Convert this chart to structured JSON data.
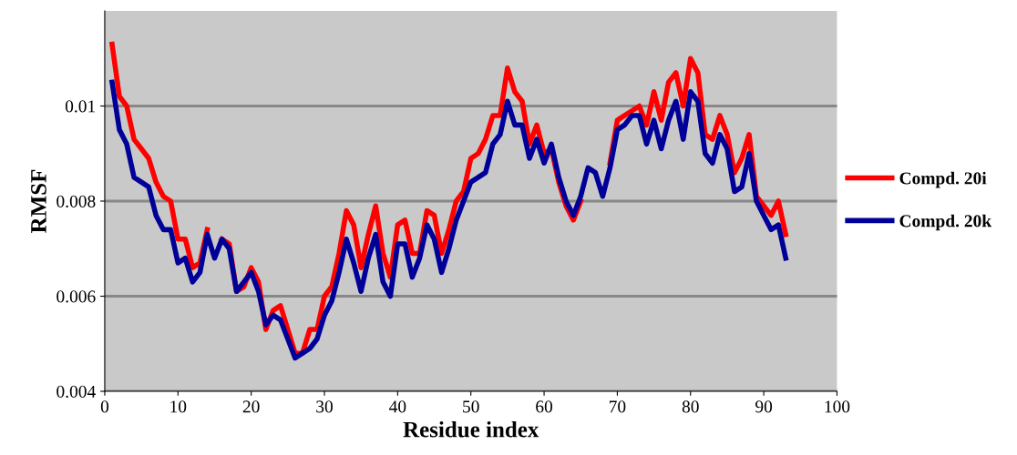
{
  "chart_data": {
    "type": "line",
    "xlabel": "Residue index",
    "ylabel": "RMSF",
    "x": [
      1,
      2,
      3,
      4,
      5,
      6,
      7,
      8,
      9,
      10,
      11,
      12,
      13,
      14,
      15,
      16,
      17,
      18,
      19,
      20,
      21,
      22,
      23,
      24,
      25,
      26,
      27,
      28,
      29,
      30,
      31,
      32,
      33,
      34,
      35,
      36,
      37,
      38,
      39,
      40,
      41,
      42,
      43,
      44,
      45,
      46,
      47,
      48,
      49,
      50,
      51,
      52,
      53,
      54,
      55,
      56,
      57,
      58,
      59,
      60,
      61,
      62,
      63,
      64,
      65,
      66,
      67,
      68,
      69,
      70,
      71,
      72,
      73,
      74,
      75,
      76,
      77,
      78,
      79,
      80,
      81,
      82,
      83,
      84,
      85,
      86,
      87,
      88,
      89,
      90,
      91,
      92,
      93
    ],
    "series": [
      {
        "name": "Compd. 20i",
        "color": "#ff0000",
        "values": [
          0.0113,
          0.0102,
          0.01,
          0.0093,
          0.0091,
          0.0089,
          0.0084,
          0.0081,
          0.008,
          0.0072,
          0.0072,
          0.0066,
          0.0067,
          0.0074,
          null,
          0.0072,
          0.0071,
          0.0061,
          0.0062,
          0.0066,
          0.0063,
          0.0053,
          0.0057,
          0.0058,
          0.0053,
          0.0048,
          0.0048,
          0.0053,
          0.0053,
          0.006,
          0.0062,
          0.0069,
          0.0078,
          0.0075,
          0.0066,
          0.0073,
          0.0079,
          0.0069,
          0.0064,
          0.0075,
          0.0076,
          0.0069,
          0.0069,
          0.0078,
          0.0077,
          0.0069,
          0.0074,
          0.008,
          0.0082,
          0.0089,
          0.009,
          0.0093,
          0.0098,
          0.0098,
          0.0108,
          0.0103,
          0.0101,
          0.0092,
          0.0096,
          0.009,
          0.0091,
          0.0084,
          0.0079,
          0.0076,
          0.008,
          null,
          null,
          null,
          0.0088,
          0.0097,
          0.0098,
          0.0099,
          0.01,
          0.0096,
          0.0103,
          0.0097,
          0.0105,
          0.0107,
          0.01,
          0.011,
          0.0107,
          0.0094,
          0.0093,
          0.0098,
          0.0094,
          0.0086,
          0.0089,
          0.0094,
          0.0081,
          0.0079,
          0.0077,
          0.008,
          0.0073
        ]
      },
      {
        "name": "Compd. 20k",
        "color": "#000099",
        "values": [
          0.0105,
          0.0095,
          0.0092,
          0.0085,
          0.0084,
          0.0083,
          0.0077,
          0.0074,
          0.0074,
          0.0067,
          0.0068,
          0.0063,
          0.0065,
          0.0073,
          0.0068,
          0.0072,
          0.007,
          0.0061,
          0.0063,
          0.0065,
          0.0061,
          0.0054,
          0.0056,
          0.0055,
          0.0051,
          0.0047,
          0.0048,
          0.0049,
          0.0051,
          0.0056,
          0.0059,
          0.0065,
          0.0072,
          0.0067,
          0.0061,
          0.0068,
          0.0073,
          0.0063,
          0.006,
          0.0071,
          0.0071,
          0.0064,
          0.0068,
          0.0075,
          0.0072,
          0.0065,
          0.007,
          0.0076,
          0.008,
          0.0084,
          0.0085,
          0.0086,
          0.0092,
          0.0094,
          0.0101,
          0.0096,
          0.0096,
          0.0089,
          0.0093,
          0.0088,
          0.0092,
          0.0085,
          0.008,
          0.0077,
          0.0081,
          0.0087,
          0.0086,
          0.0081,
          0.0087,
          0.0095,
          0.0096,
          0.0098,
          0.0098,
          0.0092,
          0.0097,
          0.0091,
          0.0097,
          0.0101,
          0.0093,
          0.0103,
          0.0101,
          0.009,
          0.0088,
          0.0094,
          0.0091,
          0.0082,
          0.0083,
          0.009,
          0.008,
          0.0077,
          0.0074,
          0.0075,
          0.0068
        ]
      }
    ],
    "xlim": [
      0,
      100
    ],
    "xticks": [
      0,
      10,
      20,
      30,
      40,
      50,
      60,
      70,
      80,
      90,
      100
    ],
    "ylim": [
      0.004,
      0.012
    ],
    "yticks": [
      0.004,
      0.006,
      0.008,
      0.01
    ],
    "grid": "y",
    "legend": "right",
    "marker": "none",
    "line_style": "solid"
  }
}
